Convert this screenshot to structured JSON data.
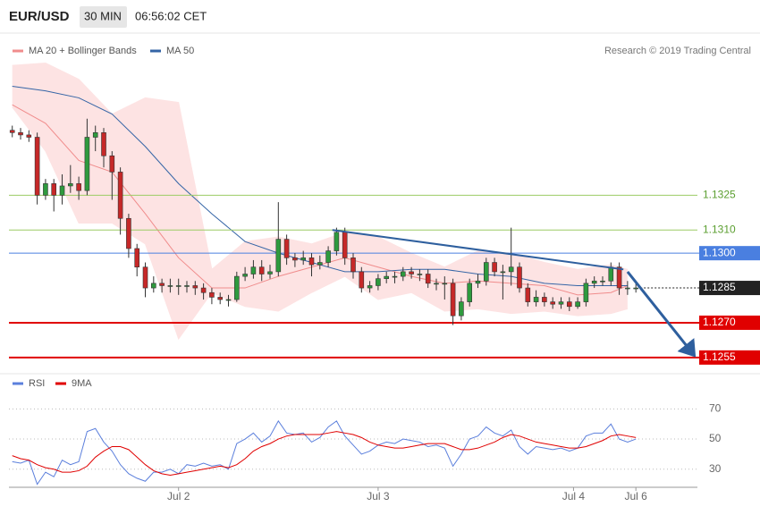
{
  "chart_data": [
    {
      "type": "candlestick",
      "title": "EUR/USD",
      "timeframe": "30 MIN",
      "time": "06:56:02 CET",
      "credit": "Research © 2019 Trading Central",
      "up_color": "#2e9a3e",
      "down_color": "#c62828",
      "xlim": [
        -0.4,
        82.4
      ],
      "ylim": [
        1.1248,
        1.1393
      ],
      "open": [
        1.1353,
        1.1352,
        1.1351,
        1.135,
        1.1325,
        1.133,
        1.1325,
        1.1329,
        1.133,
        1.1327,
        1.135,
        1.1352,
        1.1342,
        1.1335,
        1.1315,
        1.1302,
        1.1294,
        1.1285,
        1.1287,
        1.1286,
        1.1286,
        1.1286,
        1.1286,
        1.1285,
        1.1283,
        1.1281,
        1.128,
        1.128,
        1.129,
        1.1291,
        1.1294,
        1.1291,
        1.1292,
        1.1306,
        1.1298,
        1.1297,
        1.1298,
        1.1295,
        1.1296,
        1.1301,
        1.1309,
        1.1298,
        1.1292,
        1.1285,
        1.1286,
        1.1289,
        1.129,
        1.129,
        1.1292,
        1.1291,
        1.1291,
        1.1287,
        1.1287,
        1.1287,
        1.1273,
        1.1279,
        1.1287,
        1.1288,
        1.1296,
        1.1292,
        1.1292,
        1.1294,
        1.1285,
        1.1279,
        1.1281,
        1.1279,
        1.1278,
        1.1279,
        1.1277,
        1.1279,
        1.1287,
        1.1288,
        1.1288,
        1.1294,
        1.1285,
        1.1285
      ],
      "high": [
        1.1355,
        1.1354,
        1.1353,
        1.1352,
        1.1332,
        1.1332,
        1.1334,
        1.1338,
        1.1333,
        1.1358,
        1.1355,
        1.1354,
        1.1344,
        1.1337,
        1.1317,
        1.1304,
        1.1296,
        1.129,
        1.1289,
        1.1289,
        1.1289,
        1.1288,
        1.1288,
        1.1287,
        1.1285,
        1.1283,
        1.1282,
        1.1292,
        1.1294,
        1.1297,
        1.1297,
        1.1295,
        1.1322,
        1.1308,
        1.13,
        1.1301,
        1.13,
        1.1299,
        1.1303,
        1.1311,
        1.1311,
        1.13,
        1.1294,
        1.1288,
        1.1291,
        1.1292,
        1.1292,
        1.1294,
        1.1294,
        1.1293,
        1.1293,
        1.1289,
        1.129,
        1.1289,
        1.1281,
        1.1289,
        1.1291,
        1.1298,
        1.1298,
        1.1295,
        1.1311,
        1.1296,
        1.1287,
        1.1284,
        1.1283,
        1.1281,
        1.1281,
        1.1281,
        1.1281,
        1.1289,
        1.129,
        1.129,
        1.1296,
        1.1296,
        1.1288,
        1.1287
      ],
      "low": [
        1.135,
        1.1349,
        1.1348,
        1.1321,
        1.1323,
        1.1318,
        1.1321,
        1.1326,
        1.1323,
        1.1325,
        1.1344,
        1.1337,
        1.1323,
        1.1308,
        1.1298,
        1.129,
        1.1281,
        1.1283,
        1.1283,
        1.1283,
        1.1282,
        1.1283,
        1.1282,
        1.128,
        1.1278,
        1.1278,
        1.1277,
        1.1279,
        1.1288,
        1.1289,
        1.1288,
        1.1289,
        1.129,
        1.1295,
        1.1294,
        1.1295,
        1.129,
        1.1293,
        1.1294,
        1.1299,
        1.1295,
        1.1289,
        1.1283,
        1.1283,
        1.1284,
        1.1287,
        1.1287,
        1.1288,
        1.1289,
        1.1288,
        1.1285,
        1.1284,
        1.128,
        1.1269,
        1.1271,
        1.1277,
        1.1285,
        1.1286,
        1.129,
        1.128,
        1.1286,
        1.1283,
        1.1277,
        1.1277,
        1.1277,
        1.1276,
        1.1276,
        1.1275,
        1.1276,
        1.1277,
        1.1285,
        1.1286,
        1.1286,
        1.1282,
        1.1282,
        1.1283
      ],
      "close": [
        1.1352,
        1.1351,
        1.135,
        1.1325,
        1.133,
        1.1325,
        1.1329,
        1.133,
        1.1327,
        1.135,
        1.1352,
        1.1342,
        1.1335,
        1.1315,
        1.1302,
        1.1294,
        1.1285,
        1.1287,
        1.1286,
        1.1286,
        1.1286,
        1.1286,
        1.1285,
        1.1283,
        1.1281,
        1.128,
        1.128,
        1.129,
        1.1291,
        1.1294,
        1.1291,
        1.1292,
        1.1306,
        1.1298,
        1.1297,
        1.1298,
        1.1295,
        1.1296,
        1.1301,
        1.1309,
        1.1298,
        1.1292,
        1.1285,
        1.1286,
        1.1289,
        1.129,
        1.129,
        1.1292,
        1.1291,
        1.1291,
        1.1287,
        1.1287,
        1.1287,
        1.1273,
        1.1279,
        1.1287,
        1.1288,
        1.1296,
        1.1292,
        1.1292,
        1.1294,
        1.1285,
        1.1279,
        1.1281,
        1.1279,
        1.1278,
        1.1279,
        1.1277,
        1.1279,
        1.1287,
        1.1288,
        1.1288,
        1.1294,
        1.1285,
        1.1285,
        1.1285
      ],
      "series": [
        {
          "name": "MA 20 + Bollinger Bands",
          "color": "#f08c8c",
          "band_color": "#fde3e3",
          "x": [
            0,
            4,
            8,
            12,
            16,
            20,
            24,
            28,
            32,
            36,
            40,
            44,
            48,
            52,
            56,
            60,
            64,
            68,
            72,
            74
          ],
          "values": [
            1.1364,
            1.1356,
            1.134,
            1.1335,
            1.1317,
            1.1298,
            1.1285,
            1.1285,
            1.129,
            1.1294,
            1.1298,
            1.1294,
            1.129,
            1.1287,
            1.1288,
            1.1287,
            1.1286,
            1.1282,
            1.1283,
            1.1286
          ],
          "upper": [
            1.1381,
            1.1382,
            1.1375,
            1.136,
            1.1367,
            1.1365,
            1.1293,
            1.1305,
            1.1307,
            1.1304,
            1.1309,
            1.1307,
            1.13,
            1.1294,
            1.1301,
            1.13,
            1.1296,
            1.1293,
            1.1295,
            1.1293
          ],
          "lower": [
            1.1363,
            1.1344,
            1.1313,
            1.1313,
            1.1304,
            1.1263,
            1.1283,
            1.1277,
            1.1275,
            1.1283,
            1.129,
            1.128,
            1.1283,
            1.1275,
            1.1276,
            1.1274,
            1.1275,
            1.1273,
            1.1274,
            1.1276
          ]
        },
        {
          "name": "MA 50",
          "color": "#3565a6",
          "x": [
            0,
            4,
            8,
            12,
            16,
            20,
            24,
            28,
            32,
            36,
            40,
            44,
            48,
            52,
            56,
            60,
            64,
            68,
            72,
            74
          ],
          "values": [
            1.1372,
            1.137,
            1.1367,
            1.136,
            1.1346,
            1.133,
            1.1317,
            1.1305,
            1.13,
            1.1296,
            1.1292,
            1.1292,
            1.1293,
            1.1293,
            1.1291,
            1.129,
            1.1287,
            1.1286,
            1.1286,
            1.1286
          ]
        }
      ],
      "trendline": {
        "color": "#2e5f9e",
        "x": [
          38.5,
          73.5
        ],
        "values": [
          1.131,
          1.1293
        ]
      },
      "arrow": {
        "color": "#2e5f9e",
        "x": [
          74,
          82
        ],
        "values": [
          1.1292,
          1.1256
        ]
      },
      "levels": [
        {
          "value": 1.1325,
          "label": "1.1325",
          "color": "#9ccc65",
          "label_style": "text",
          "width": 1,
          "dash": false
        },
        {
          "value": 1.131,
          "label": "1.1310",
          "color": "#9ccc65",
          "label_style": "text",
          "width": 1,
          "dash": false
        },
        {
          "value": 1.13,
          "label": "1.1300",
          "color": "#4a7fe0",
          "label_style": "box",
          "width": 1,
          "dash": false
        },
        {
          "value": 1.1285,
          "label": "1.1285",
          "color": "#222222",
          "label_style": "box",
          "width": 1,
          "dash": true
        },
        {
          "value": 1.127,
          "label": "1.1270",
          "color": "#e00000",
          "label_style": "box",
          "width": 2,
          "dash": false
        },
        {
          "value": 1.1255,
          "label": "1.1255",
          "color": "#e00000",
          "label_style": "box",
          "width": 2,
          "dash": false
        }
      ]
    },
    {
      "type": "line",
      "xlim": [
        -0.4,
        82.4
      ],
      "ylim": [
        18,
        88
      ],
      "yticks": [
        30,
        50,
        70
      ],
      "grid": true,
      "xticks": [
        {
          "value": 20,
          "label": "Jul 2"
        },
        {
          "value": 44,
          "label": "Jul 3"
        },
        {
          "value": 67.5,
          "label": "Jul 4"
        },
        {
          "value": 75,
          "label": "Jul 6"
        }
      ],
      "series": [
        {
          "name": "RSI",
          "color": "#5b7fdc",
          "values": [
            35,
            34,
            36,
            20,
            28,
            25,
            36,
            33,
            35,
            55,
            57,
            48,
            42,
            33,
            27,
            24,
            22,
            28,
            28,
            30,
            27,
            33,
            32,
            34,
            32,
            33,
            30,
            47,
            50,
            54,
            48,
            52,
            62,
            54,
            53,
            54,
            48,
            51,
            58,
            62,
            52,
            46,
            40,
            42,
            46,
            48,
            47,
            50,
            49,
            48,
            45,
            46,
            44,
            32,
            40,
            50,
            52,
            58,
            54,
            52,
            56,
            45,
            40,
            45,
            44,
            43,
            44,
            42,
            44,
            52,
            54,
            54,
            60,
            50,
            48,
            50
          ]
        },
        {
          "name": "9MA",
          "color": "#e00000",
          "values": [
            39,
            37,
            36,
            33,
            31,
            30,
            28,
            28,
            29,
            32,
            38,
            42,
            45,
            45,
            43,
            38,
            33,
            29,
            27,
            26,
            27,
            28,
            29,
            30,
            31,
            32,
            31,
            33,
            37,
            42,
            45,
            47,
            50,
            52,
            53,
            53,
            53,
            53,
            54,
            55,
            54,
            53,
            51,
            48,
            46,
            45,
            44,
            44,
            45,
            46,
            47,
            47,
            47,
            45,
            43,
            43,
            44,
            46,
            48,
            51,
            53,
            52,
            50,
            48,
            47,
            46,
            45,
            44,
            44,
            45,
            47,
            49,
            52,
            53,
            52,
            51
          ]
        }
      ]
    }
  ]
}
